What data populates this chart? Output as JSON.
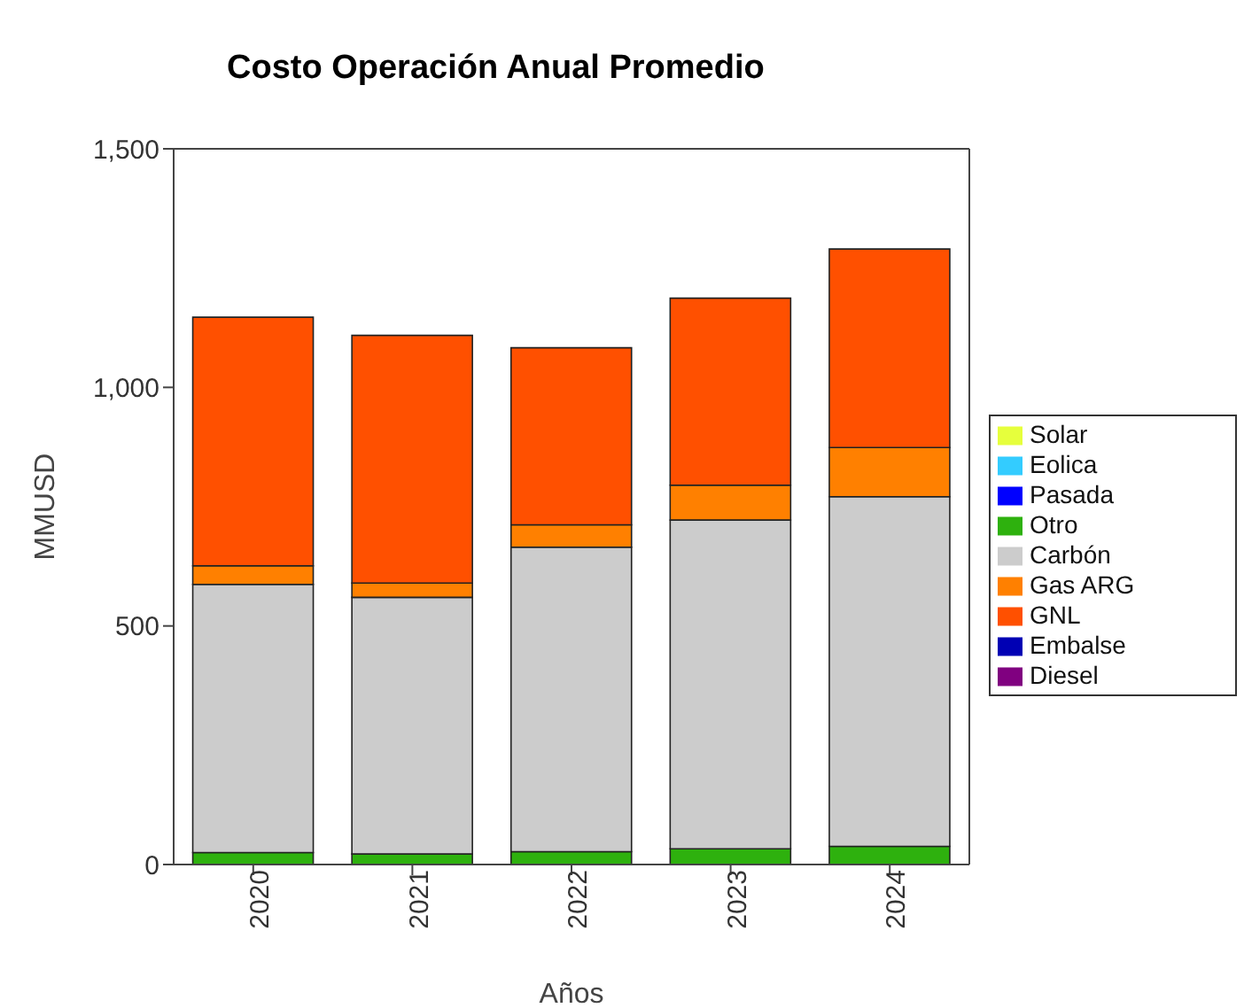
{
  "chart_data": {
    "type": "bar",
    "title": "Costo Operación Anual Promedio",
    "xlabel": "Años",
    "ylabel": "MMUSD",
    "categories": [
      "2020",
      "2021",
      "2022",
      "2023",
      "2024"
    ],
    "stacked": true,
    "ylim": [
      0,
      1500
    ],
    "yticks": [
      0,
      {
        "value": 500,
        "label": "500"
      },
      {
        "value": 1000,
        "label": "1,000"
      },
      {
        "value": 1500,
        "label": "1,500"
      }
    ],
    "grid": false,
    "legend": "right",
    "series": [
      {
        "name": "Solar",
        "color": "#e6ff3c",
        "values": [
          0,
          0,
          0,
          0,
          0
        ]
      },
      {
        "name": "Eolica",
        "color": "#33ccff",
        "values": [
          0,
          0,
          0,
          0,
          0
        ]
      },
      {
        "name": "Pasada",
        "color": "#0000ff",
        "values": [
          0,
          0,
          0,
          0,
          0
        ]
      },
      {
        "name": "Otro",
        "color": "#2eb10e",
        "values": [
          25,
          22,
          27,
          33,
          38
        ]
      },
      {
        "name": "Carbón",
        "color": "#cccccc",
        "values": [
          562,
          538,
          638,
          689,
          733
        ]
      },
      {
        "name": "Gas ARG",
        "color": "#ff8000",
        "values": [
          39,
          30,
          47,
          73,
          103
        ]
      },
      {
        "name": "GNL",
        "color": "#ff5000",
        "values": [
          521,
          519,
          371,
          392,
          416
        ]
      },
      {
        "name": "Embalse",
        "color": "#0000b4",
        "values": [
          0,
          0,
          0,
          0,
          0
        ]
      },
      {
        "name": "Diesel",
        "color": "#800080",
        "values": [
          0,
          0,
          0,
          0,
          0
        ]
      }
    ]
  }
}
